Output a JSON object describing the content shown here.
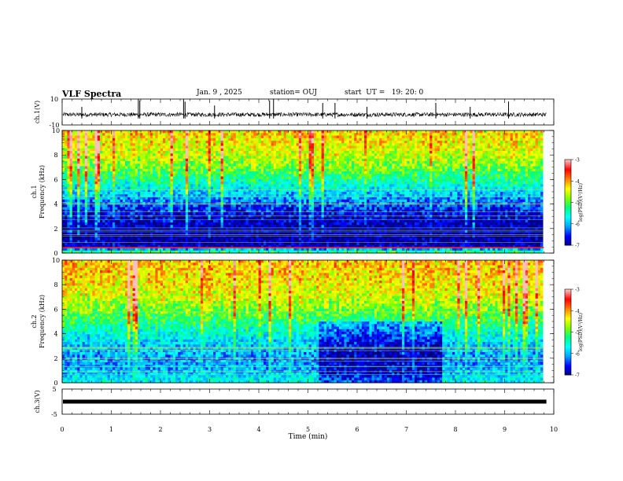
{
  "header": {
    "title": "VLF Spectra",
    "date": "Jan. 9 , 2025",
    "station": "station= OUJ",
    "start": "start  UT =   19: 20: 0"
  },
  "colors": {
    "colormap": [
      "#000080",
      "#0000ff",
      "#00a0ff",
      "#00ffff",
      "#00ff80",
      "#80ff00",
      "#ffff00",
      "#ff8000",
      "#ff0000",
      "#ffc0c0"
    ],
    "waveform": "#000000",
    "axis": "#000000"
  },
  "chart_data": [
    {
      "type": "line",
      "panel": "waveform-ch1",
      "ylabel": "ch.1(V)",
      "yticks": [
        "10",
        "-10"
      ],
      "ylim": [
        -10,
        10
      ],
      "xlim": [
        0,
        10
      ],
      "baseline": -2,
      "spikes": [
        {
          "x": 1.55,
          "y": 10
        },
        {
          "x": 1.58,
          "y": 9
        },
        {
          "x": 2.47,
          "y": 10
        },
        {
          "x": 2.5,
          "y": 8
        },
        {
          "x": 4.22,
          "y": 9
        },
        {
          "x": 4.3,
          "y": 10
        },
        {
          "x": 5.3,
          "y": 7
        },
        {
          "x": 5.55,
          "y": 7
        },
        {
          "x": 7.6,
          "y": 7
        },
        {
          "x": 9.08,
          "y": 8
        },
        {
          "x": 0.4,
          "y": 4
        },
        {
          "x": 3.1,
          "y": 5
        },
        {
          "x": 6.2,
          "y": 4
        },
        {
          "x": 8.3,
          "y": 4
        }
      ]
    },
    {
      "type": "heatmap",
      "panel": "spectrogram-ch1",
      "ylabel": "ch.1\nFrequency (kHz)",
      "ylim": [
        0,
        10
      ],
      "xlim": [
        0,
        9.8
      ],
      "yticks": [
        "0",
        "2",
        "4",
        "6",
        "8",
        "10"
      ],
      "colorbar": {
        "label": "log(PSD)(V²/Hz)",
        "ticks": [
          "-3",
          "-4",
          "-5",
          "-6",
          "-7"
        ],
        "range": [
          -7,
          -3
        ]
      },
      "freq_profile_khz": [
        0,
        0.5,
        1,
        2,
        3,
        4,
        5,
        6,
        7,
        8,
        9,
        10
      ],
      "log_psd_profile": [
        -4.8,
        -6.8,
        -6.9,
        -6.9,
        -6.7,
        -6.3,
        -5.8,
        -5.3,
        -4.8,
        -4.5,
        -4.3,
        -4.2
      ]
    },
    {
      "type": "heatmap",
      "panel": "spectrogram-ch2",
      "ylabel": "ch.2\nFrequency (kHz)",
      "ylim": [
        0,
        10
      ],
      "xlim": [
        0,
        9.8
      ],
      "yticks": [
        "0",
        "2",
        "4",
        "6",
        "8",
        "10"
      ],
      "colorbar": {
        "label": "log(PSD)(V²/Hz)",
        "ticks": [
          "-3",
          "-4",
          "-5",
          "-6",
          "-7"
        ],
        "range": [
          -7,
          -3
        ]
      },
      "freq_profile_khz": [
        0,
        1,
        2,
        3,
        4,
        5,
        6,
        7,
        8,
        9,
        10
      ],
      "log_psd_profile": [
        -5.6,
        -6.0,
        -6.1,
        -5.9,
        -5.6,
        -5.2,
        -4.8,
        -4.5,
        -4.3,
        -4.2,
        -4.1
      ]
    },
    {
      "type": "line",
      "panel": "waveform-ch3",
      "ylabel": "ch.3(V)",
      "yticks": [
        "5",
        "-5"
      ],
      "ylim": [
        -5,
        5
      ],
      "xlim": [
        0,
        10
      ],
      "baseline": 0
    }
  ],
  "xaxis": {
    "label": "Time  (min)",
    "ticks": [
      "0",
      "1",
      "2",
      "3",
      "4",
      "5",
      "6",
      "7",
      "8",
      "9",
      "10"
    ]
  }
}
